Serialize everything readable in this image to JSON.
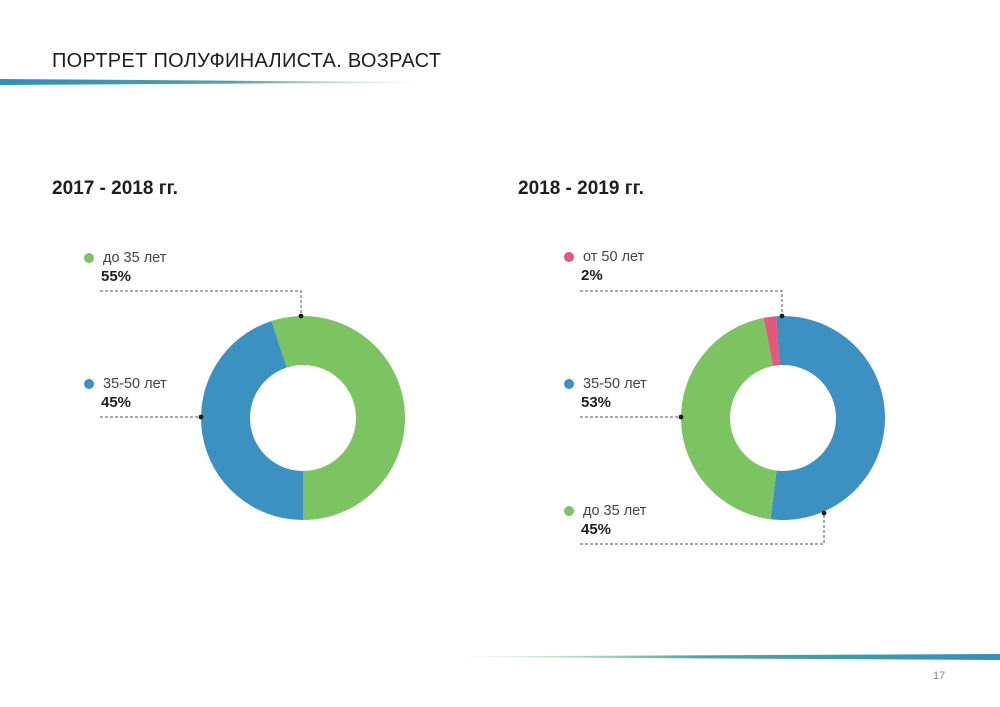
{
  "page": {
    "title": "ПОРТРЕТ ПОЛУФИНАЛИСТА. ВОЗРАСТ",
    "page_number": "17"
  },
  "colors": {
    "green": "#7cc362",
    "blue": "#3a91c2",
    "pink": "#e8567c",
    "gradient_start": "#2e8fc1",
    "gradient_end": "#7cc362"
  },
  "chart_data": [
    {
      "type": "pie",
      "title": "2017 - 2018 гг.",
      "slices": [
        {
          "label": "до 35 лет",
          "value": 55,
          "display": "55%",
          "color": "#7cc362"
        },
        {
          "label": "35-50 лет",
          "value": 45,
          "display": "45%",
          "color": "#3a91c2"
        }
      ]
    },
    {
      "type": "pie",
      "title": "2018 - 2019 гг.",
      "slices": [
        {
          "label": "от 50 лет",
          "value": 2,
          "display": "2%",
          "color": "#e8567c"
        },
        {
          "label": "35-50 лет",
          "value": 53,
          "display": "53%",
          "color": "#3a91c2"
        },
        {
          "label": "до 35 лет",
          "value": 45,
          "display": "45%",
          "color": "#7cc362"
        }
      ]
    }
  ]
}
